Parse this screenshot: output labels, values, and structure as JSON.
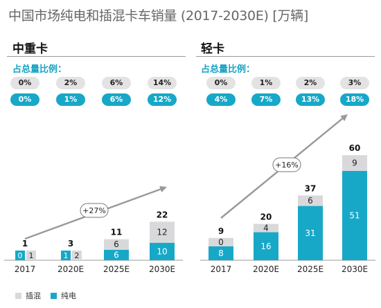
{
  "title": "中国市场纯电和插混卡车销量 (2017-2030E) [万辆]",
  "share_label": "占总量比例：",
  "legend": {
    "phev": "插混",
    "bev": "纯电"
  },
  "colors": {
    "phev": "#d9d9db",
    "bev": "#17a8c8",
    "arrow": "#9a9a9a",
    "axis": "#999999"
  },
  "panels": [
    {
      "title": "中重卡",
      "phev_share": [
        "0%",
        "2%",
        "6%",
        "14%"
      ],
      "bev_share": [
        "0%",
        "1%",
        "6%",
        "12%"
      ],
      "growth_label": "+27%"
    },
    {
      "title": "轻卡",
      "phev_share": [
        "0%",
        "1%",
        "2%",
        "3%"
      ],
      "bev_share": [
        "4%",
        "7%",
        "13%",
        "18%"
      ],
      "growth_label": "+16%"
    }
  ],
  "chart_data": [
    {
      "type": "bar",
      "stacked": true,
      "title": "中重卡",
      "categories": [
        "2017",
        "2020E",
        "2025E",
        "2030E"
      ],
      "series": [
        {
          "name": "纯电",
          "values": [
            0,
            1,
            6,
            10
          ]
        },
        {
          "name": "插混",
          "values": [
            1,
            2,
            6,
            12
          ]
        }
      ],
      "totals": [
        1,
        3,
        11,
        22
      ],
      "ylim": [
        0,
        60
      ]
    },
    {
      "type": "bar",
      "stacked": true,
      "title": "轻卡",
      "categories": [
        "2017",
        "2020E",
        "2025E",
        "2030E"
      ],
      "series": [
        {
          "name": "纯电",
          "values": [
            8,
            16,
            31,
            51
          ]
        },
        {
          "name": "插混",
          "values": [
            0,
            4,
            6,
            9
          ]
        }
      ],
      "totals": [
        9,
        20,
        37,
        60
      ],
      "ylim": [
        0,
        60
      ]
    }
  ]
}
